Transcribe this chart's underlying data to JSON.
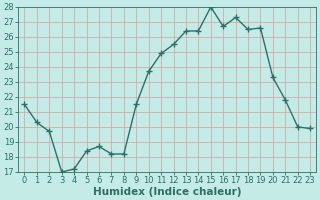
{
  "x": [
    0,
    1,
    2,
    3,
    4,
    5,
    6,
    7,
    8,
    9,
    10,
    11,
    12,
    13,
    14,
    15,
    16,
    17,
    18,
    19,
    20,
    21,
    22,
    23
  ],
  "y": [
    21.5,
    20.3,
    19.7,
    17.0,
    17.2,
    18.4,
    18.7,
    18.2,
    18.2,
    21.5,
    23.7,
    24.9,
    25.5,
    26.4,
    26.4,
    28.0,
    26.7,
    27.3,
    26.5,
    26.6,
    23.3,
    21.8,
    20.0,
    19.9
  ],
  "line_color": "#2e7068",
  "marker": "+",
  "bg_color": "#c5ebe6",
  "grid_color": "#d4a0a0",
  "xlabel": "Humidex (Indice chaleur)",
  "ylim": [
    17,
    28
  ],
  "xlim": [
    -0.5,
    23.5
  ],
  "yticks": [
    17,
    18,
    19,
    20,
    21,
    22,
    23,
    24,
    25,
    26,
    27,
    28
  ],
  "xticks": [
    0,
    1,
    2,
    3,
    4,
    5,
    6,
    7,
    8,
    9,
    10,
    11,
    12,
    13,
    14,
    15,
    16,
    17,
    18,
    19,
    20,
    21,
    22,
    23
  ],
  "tick_color": "#2e7068",
  "label_fontsize": 7.5,
  "tick_fontsize": 6,
  "line_width": 1.0,
  "marker_size": 4
}
